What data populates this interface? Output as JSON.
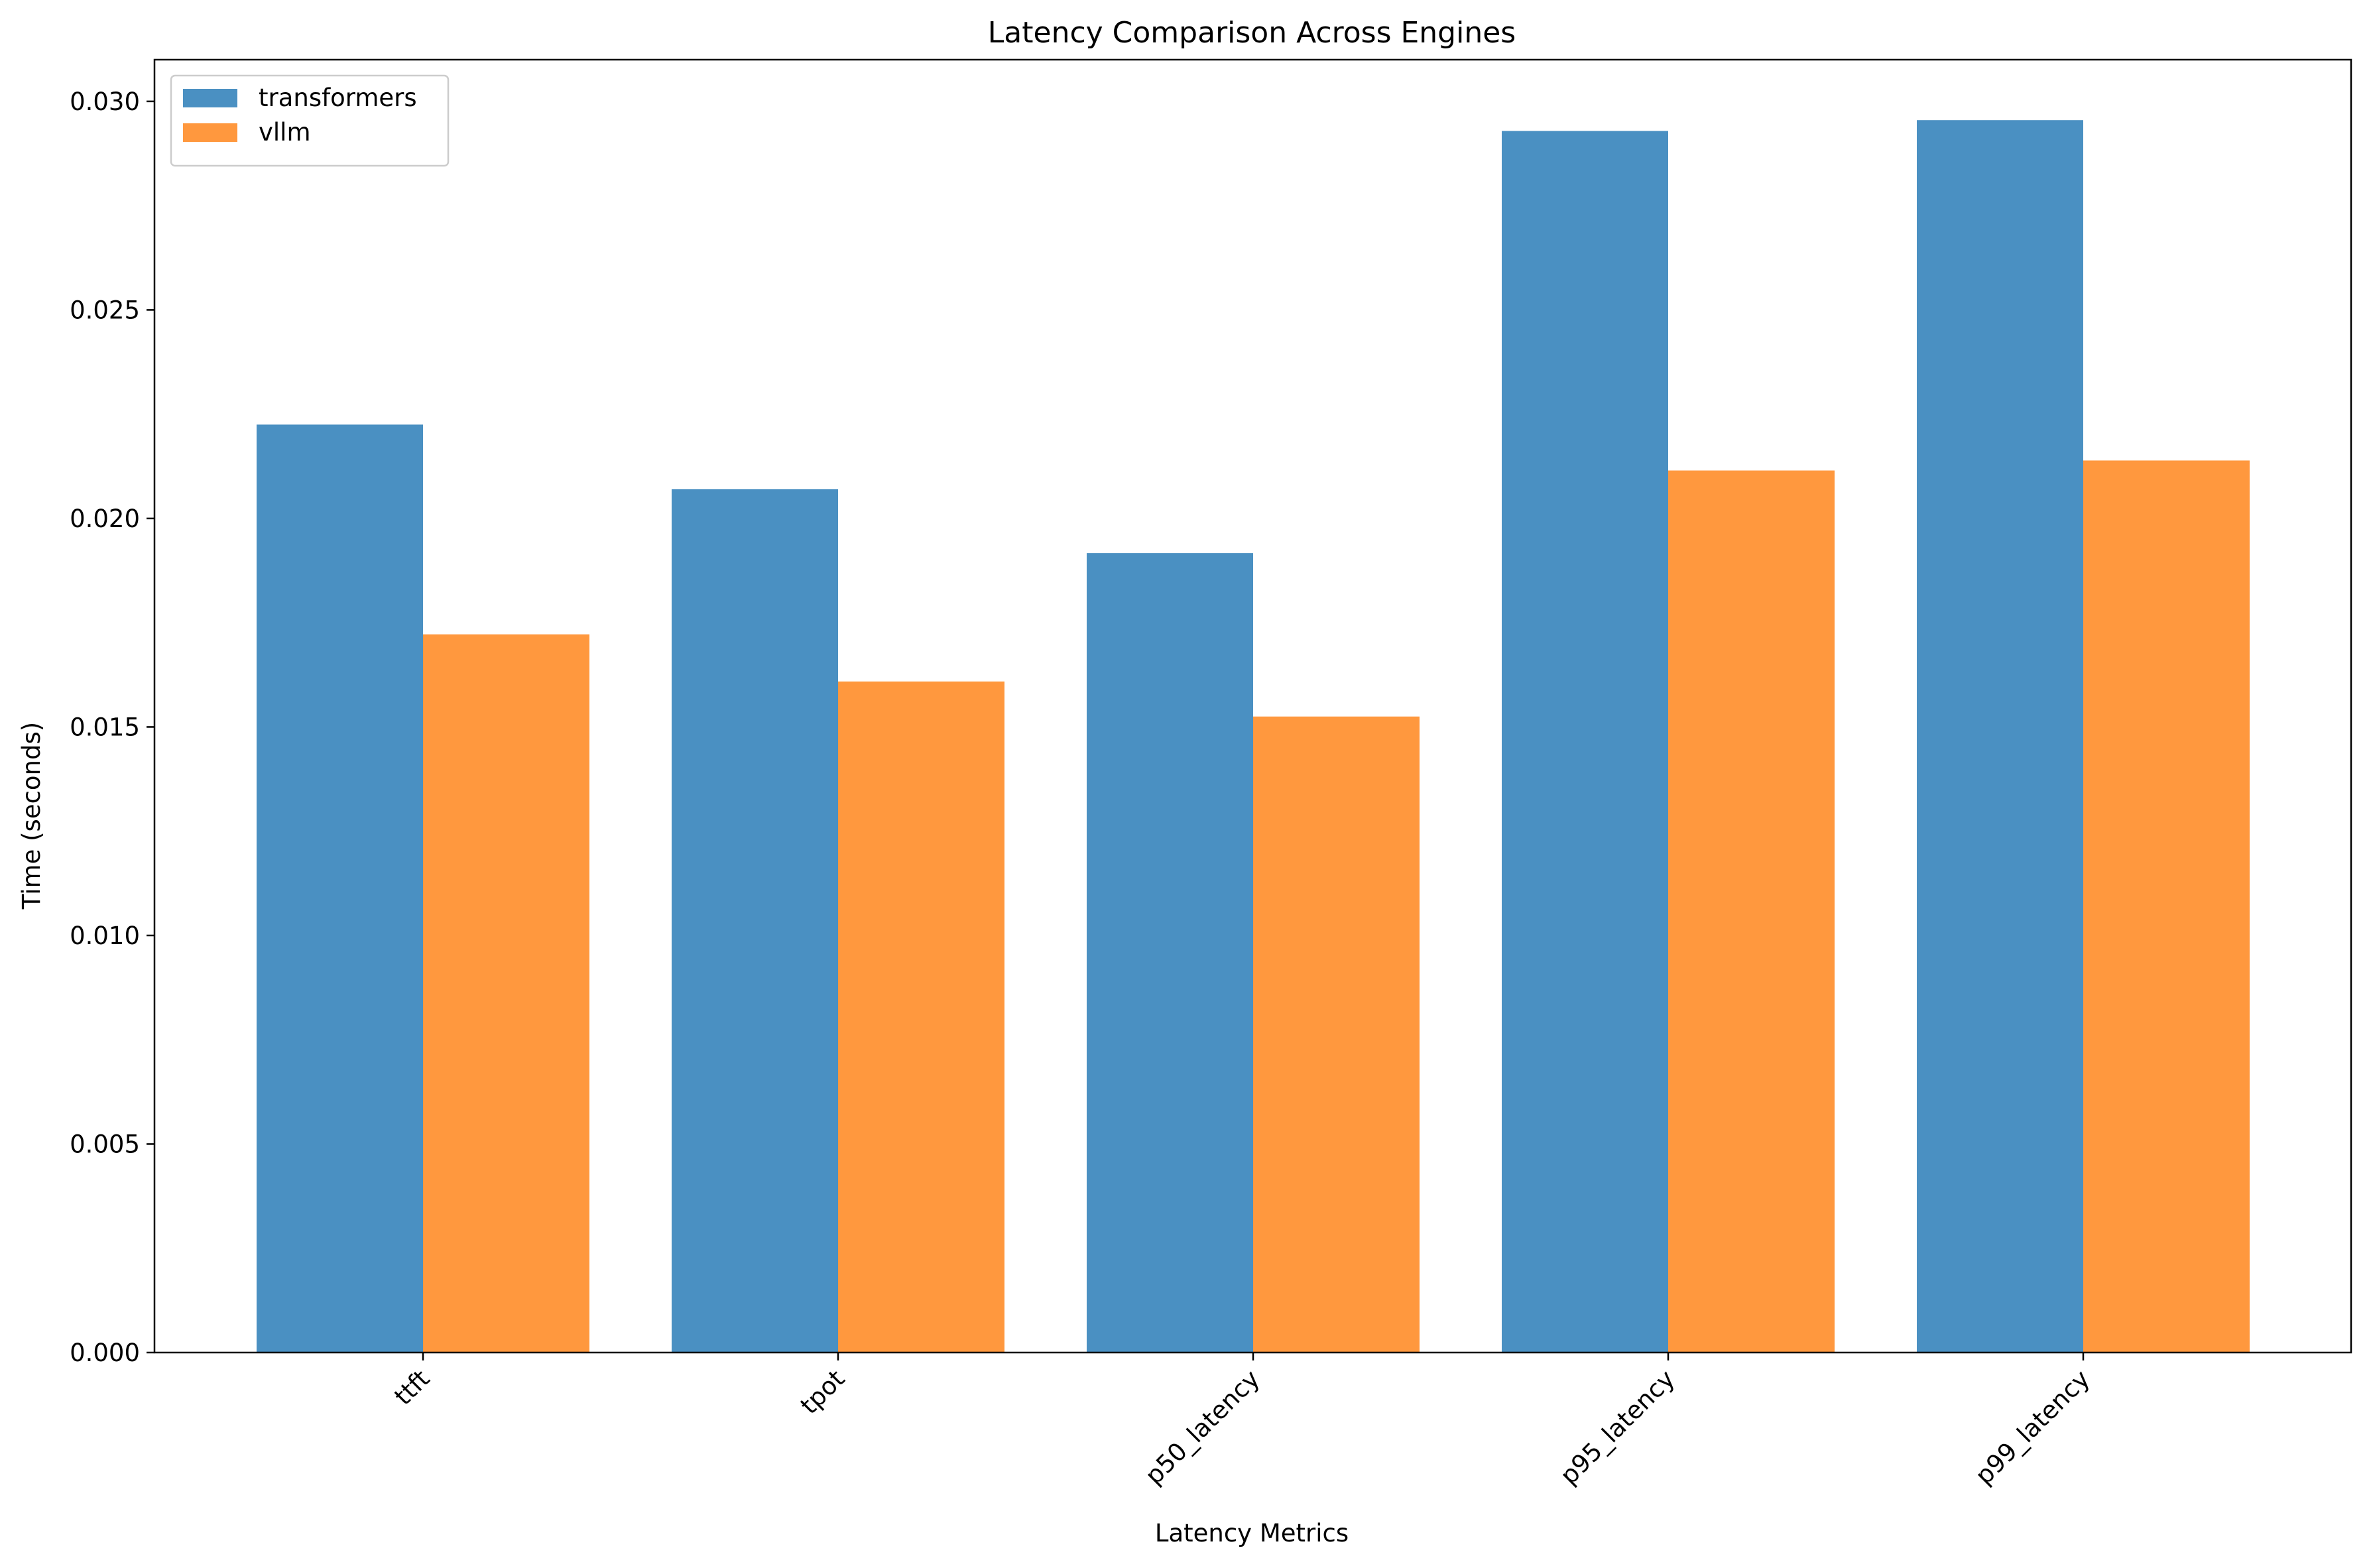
{
  "chart_data": {
    "type": "bar",
    "title": "Latency Comparison Across Engines",
    "xlabel": "Latency Metrics",
    "ylabel": "Time (seconds)",
    "categories": [
      "ttft",
      "tpot",
      "p50_latency",
      "p95_latency",
      "p99_latency"
    ],
    "series": [
      {
        "name": "transformers",
        "color": "#4a90c2",
        "values": [
          0.02225,
          0.0207,
          0.01917,
          0.02929,
          0.02955
        ]
      },
      {
        "name": "vllm",
        "color": "#ff983e",
        "values": [
          0.01722,
          0.01609,
          0.01525,
          0.02115,
          0.02139
        ]
      }
    ],
    "ylim": [
      0,
      0.031
    ],
    "yticks": [
      0.0,
      0.005,
      0.01,
      0.015,
      0.02,
      0.025,
      0.03
    ],
    "ytick_labels": [
      "0.000",
      "0.005",
      "0.010",
      "0.015",
      "0.020",
      "0.025",
      "0.030"
    ],
    "grid": false,
    "legend_position": "top-left",
    "x_tick_rotation_deg": 45
  }
}
